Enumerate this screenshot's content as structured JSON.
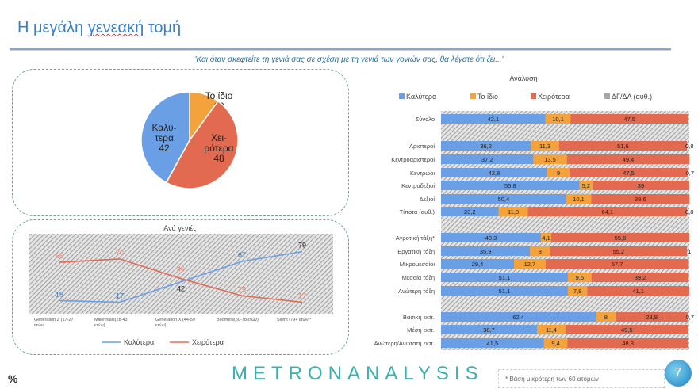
{
  "header": {
    "title_pre": "Η μεγάλη ",
    "title_underlined": "γενεακή",
    "title_post": " τομή",
    "question": "'Και όταν σκεφτείτε τη γενιά σας σε σχέση με τη γενιά των γονιών σας, θα λέγατε ότι ζει...'"
  },
  "footer": {
    "percent_sign": "%",
    "logo_a": "METRON",
    "logo_b": "ANALYSIS",
    "note": "* Βάση μικρότερη των 60 ατόμων",
    "page": "7"
  },
  "colors": {
    "better": "#6a9fe6",
    "same": "#f4a23c",
    "worse": "#e26a50",
    "dk": "#a6a6a6"
  },
  "chart_data": [
    {
      "type": "pie",
      "slices": [
        {
          "label": "Το ίδιο",
          "value": 10
        },
        {
          "label": "Χει-ρότερα",
          "value": 48
        },
        {
          "label": "Καλύ-τερα",
          "value": 42
        }
      ]
    },
    {
      "type": "line",
      "title": "Ανά γενιές",
      "categories": [
        "Generation Z (17-27 ετών)",
        "Millennials(28-43 ετών)",
        "Generation X (44-59 ετών)",
        "Boomers(60-78 ετών)",
        "Silent (79+ ετών)*"
      ],
      "series": [
        {
          "name": "Καλύτερα",
          "values": [
            19,
            17,
            42,
            67,
            79
          ]
        },
        {
          "name": "Χειρότερα",
          "values": [
            66,
            70,
            46,
            25,
            17
          ]
        }
      ],
      "legend": "bottom"
    },
    {
      "type": "bar",
      "stacked": true,
      "orientation": "horizontal",
      "title": "Ανάλυση",
      "legend": "top",
      "series_names": [
        "Καλύτερα",
        "Το ίδιο",
        "Χειρότερα",
        "ΔΓ/ΔΑ (αυθ.)"
      ],
      "rows": [
        {
          "label": "Σύνολο",
          "values": [
            42.1,
            10.1,
            47.5,
            0.3
          ],
          "labels": [
            "42,1",
            "10,1",
            "47,5",
            ""
          ]
        },
        {
          "label": "Αριστεροί",
          "values": [
            36.2,
            11.3,
            51.6,
            0.8
          ],
          "labels": [
            "36,2",
            "11,3",
            "51,6",
            "0,8"
          ]
        },
        {
          "label": "Κεντροαριστεροί",
          "values": [
            37.2,
            13.5,
            49.4,
            0
          ],
          "labels": [
            "37,2",
            "13,5",
            "49,4",
            ""
          ]
        },
        {
          "label": "Κεντρώοι",
          "values": [
            42.8,
            9,
            47.5,
            0.7
          ],
          "labels": [
            "42,8",
            "9",
            "47,5",
            "0,7"
          ]
        },
        {
          "label": "Κεντροδεξιοί",
          "values": [
            55.8,
            5.2,
            39,
            0
          ],
          "labels": [
            "55,8",
            "5,2",
            "39",
            ""
          ]
        },
        {
          "label": "Δεξιοί",
          "values": [
            50.4,
            10.1,
            39.6,
            0
          ],
          "labels": [
            "50,4",
            "10,1",
            "39,6",
            ""
          ]
        },
        {
          "label": "Τίποτα (αυθ.)",
          "values": [
            23.2,
            11.8,
            64.1,
            0.8
          ],
          "labels": [
            "23,2",
            "11,8",
            "64,1",
            "0,8"
          ]
        },
        {
          "label": "Αγροτική τάξη*",
          "values": [
            40.3,
            4.1,
            55.6,
            0
          ],
          "labels": [
            "40,3",
            "4,1",
            "55,6",
            ""
          ]
        },
        {
          "label": "Εργατική τάξη",
          "values": [
            35.9,
            8,
            55.2,
            1
          ],
          "labels": [
            "35,9",
            "8",
            "55,2",
            "1"
          ]
        },
        {
          "label": "Μικρομεσαίοι",
          "values": [
            29.4,
            12.7,
            57.7,
            0
          ],
          "labels": [
            "29,4",
            "12,7",
            "57,7",
            ""
          ]
        },
        {
          "label": "Μεσαία τάξη",
          "values": [
            51.1,
            9.5,
            39.2,
            0
          ],
          "labels": [
            "51,1",
            "9,5",
            "39,2",
            ""
          ]
        },
        {
          "label": "Ανώτερη τάξη",
          "values": [
            51.1,
            7.8,
            41.1,
            0
          ],
          "labels": [
            "51,1",
            "7,8",
            "41,1",
            ""
          ]
        },
        {
          "label": "Βασική εκπ.",
          "values": [
            62.4,
            8,
            28.9,
            0.7
          ],
          "labels": [
            "62,4",
            "8",
            "28,9",
            "0,7"
          ]
        },
        {
          "label": "Μέση εκπ.",
          "values": [
            38.7,
            11.4,
            49.5,
            0
          ],
          "labels": [
            "38,7",
            "11,4",
            "49,5",
            ""
          ]
        },
        {
          "label": "Ανώτερη/Ανώτατη εκπ.",
          "values": [
            41.5,
            9.4,
            48.8,
            0
          ],
          "labels": [
            "41,5",
            "9,4",
            "48,8",
            ""
          ]
        }
      ]
    }
  ]
}
